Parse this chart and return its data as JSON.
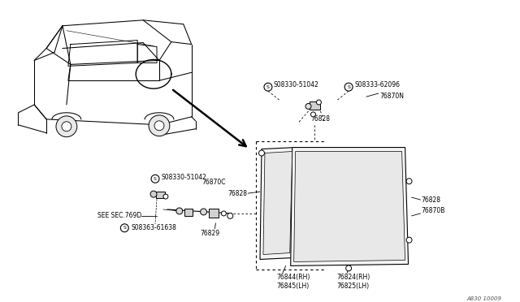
{
  "bg_color": "#ffffff",
  "line_color": "#000000",
  "fig_width": 6.4,
  "fig_height": 3.72,
  "watermark": "A830 10009",
  "labels": {
    "s08330_top": "S08330-51042",
    "s08333": "S08333-62096",
    "76870N": "76870N",
    "76828_top": "76828",
    "76828_mid": "76828",
    "76828_right": "76828",
    "76844": "76844(RH)\n76845(LH)",
    "76824": "76824(RH)\n76825(LH)",
    "76870B": "76870B",
    "s08330_bot": "S08330-51042",
    "76870C": "76870C",
    "see_sec": "SEE SEC.769D",
    "s08363": "S08363-61638",
    "76829": "76829"
  }
}
